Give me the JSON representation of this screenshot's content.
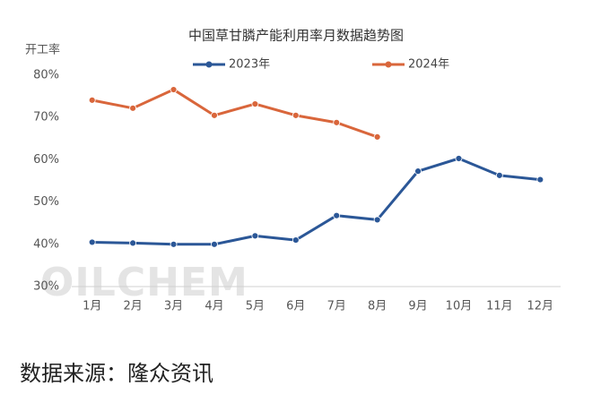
{
  "chart_data": {
    "type": "line",
    "title": "中国草甘膦产能利用率月数据趋势图",
    "y_axis_label": "开工率",
    "watermark": "OILCHEM",
    "source": "数据来源：隆众资讯",
    "categories": [
      "1月",
      "2月",
      "3月",
      "4月",
      "5月",
      "6月",
      "7月",
      "8月",
      "9月",
      "10月",
      "11月",
      "12月"
    ],
    "series": [
      {
        "name": "2023年",
        "color": "#2b5797",
        "values": [
          40.5,
          40.3,
          40.0,
          40.0,
          42.0,
          41.0,
          46.8,
          45.8,
          57.3,
          60.3,
          56.3,
          55.3
        ]
      },
      {
        "name": "2024年",
        "color": "#d9663b",
        "values": [
          74.1,
          72.2,
          76.6,
          70.5,
          73.2,
          70.5,
          68.8,
          65.4,
          null,
          null,
          null,
          null
        ]
      }
    ],
    "ylim": [
      30,
      80
    ],
    "yticks": [
      {
        "value": 30,
        "label": "30%"
      },
      {
        "value": 40,
        "label": "40%"
      },
      {
        "value": 50,
        "label": "50%"
      },
      {
        "value": 60,
        "label": "60%"
      },
      {
        "value": 70,
        "label": "70%"
      },
      {
        "value": 80,
        "label": "80%"
      }
    ],
    "grid": false,
    "legend": "top"
  }
}
